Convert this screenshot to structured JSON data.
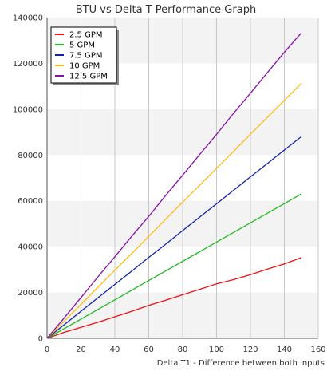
{
  "chart_data": {
    "type": "line",
    "title": "BTU vs Delta T Performance Graph",
    "xlabel": "Delta T1 - Difference between both inputs",
    "ylabel": "",
    "xlim": [
      0,
      160
    ],
    "ylim": [
      0,
      140000
    ],
    "x_ticks": [
      "0",
      "20",
      "40",
      "60",
      "80",
      "100",
      "120",
      "140",
      "160"
    ],
    "y_ticks": [
      "0",
      "20000",
      "40000",
      "60000",
      "80000",
      "100000",
      "120000",
      "140000"
    ],
    "grid": "vertical lines, alternating horizontal bands",
    "legend_position": "top-left",
    "series": [
      {
        "name": "2.5 GPM",
        "color": "#ee1111",
        "points": [
          [
            0,
            0
          ],
          [
            10,
            2600
          ],
          [
            20,
            4800
          ],
          [
            30,
            7000
          ],
          [
            40,
            9400
          ],
          [
            50,
            11800
          ],
          [
            60,
            14400
          ],
          [
            70,
            16600
          ],
          [
            80,
            19000
          ],
          [
            90,
            21400
          ],
          [
            100,
            23800
          ],
          [
            110,
            25600
          ],
          [
            120,
            27800
          ],
          [
            130,
            30200
          ],
          [
            140,
            32500
          ],
          [
            150,
            35200
          ]
        ]
      },
      {
        "name": "5 GPM",
        "color": "#22bb22",
        "points": [
          [
            0,
            0
          ],
          [
            10,
            4200
          ],
          [
            20,
            8400
          ],
          [
            30,
            12600
          ],
          [
            40,
            16800
          ],
          [
            50,
            21000
          ],
          [
            60,
            25200
          ],
          [
            70,
            29400
          ],
          [
            80,
            33600
          ],
          [
            90,
            37800
          ],
          [
            100,
            42000
          ],
          [
            110,
            46200
          ],
          [
            120,
            50400
          ],
          [
            130,
            54600
          ],
          [
            140,
            58800
          ],
          [
            150,
            63000
          ]
        ]
      },
      {
        "name": "7.5 GPM",
        "color": "#1122aa",
        "points": [
          [
            0,
            0
          ],
          [
            10,
            5900
          ],
          [
            20,
            11800
          ],
          [
            30,
            17700
          ],
          [
            40,
            23500
          ],
          [
            50,
            29400
          ],
          [
            60,
            35300
          ],
          [
            70,
            41100
          ],
          [
            80,
            47000
          ],
          [
            90,
            52900
          ],
          [
            100,
            58700
          ],
          [
            110,
            64600
          ],
          [
            120,
            70500
          ],
          [
            130,
            76300
          ],
          [
            140,
            82200
          ],
          [
            150,
            88000
          ]
        ]
      },
      {
        "name": "10 GPM",
        "color": "#ffbb11",
        "points": [
          [
            0,
            0
          ],
          [
            10,
            7400
          ],
          [
            20,
            14800
          ],
          [
            30,
            22300
          ],
          [
            40,
            29700
          ],
          [
            50,
            37100
          ],
          [
            60,
            44500
          ],
          [
            70,
            52000
          ],
          [
            80,
            59400
          ],
          [
            90,
            66800
          ],
          [
            100,
            74200
          ],
          [
            110,
            81600
          ],
          [
            120,
            89100
          ],
          [
            130,
            96500
          ],
          [
            140,
            103900
          ],
          [
            150,
            111300
          ]
        ]
      },
      {
        "name": "12.5 GPM",
        "color": "#8811aa",
        "points": [
          [
            0,
            0
          ],
          [
            10,
            8800
          ],
          [
            20,
            17800
          ],
          [
            30,
            26800
          ],
          [
            40,
            35600
          ],
          [
            50,
            44600
          ],
          [
            60,
            53200
          ],
          [
            70,
            62400
          ],
          [
            80,
            71200
          ],
          [
            90,
            80200
          ],
          [
            100,
            89000
          ],
          [
            110,
            98200
          ],
          [
            120,
            107000
          ],
          [
            130,
            116000
          ],
          [
            140,
            124800
          ],
          [
            150,
            133300
          ]
        ]
      }
    ]
  }
}
